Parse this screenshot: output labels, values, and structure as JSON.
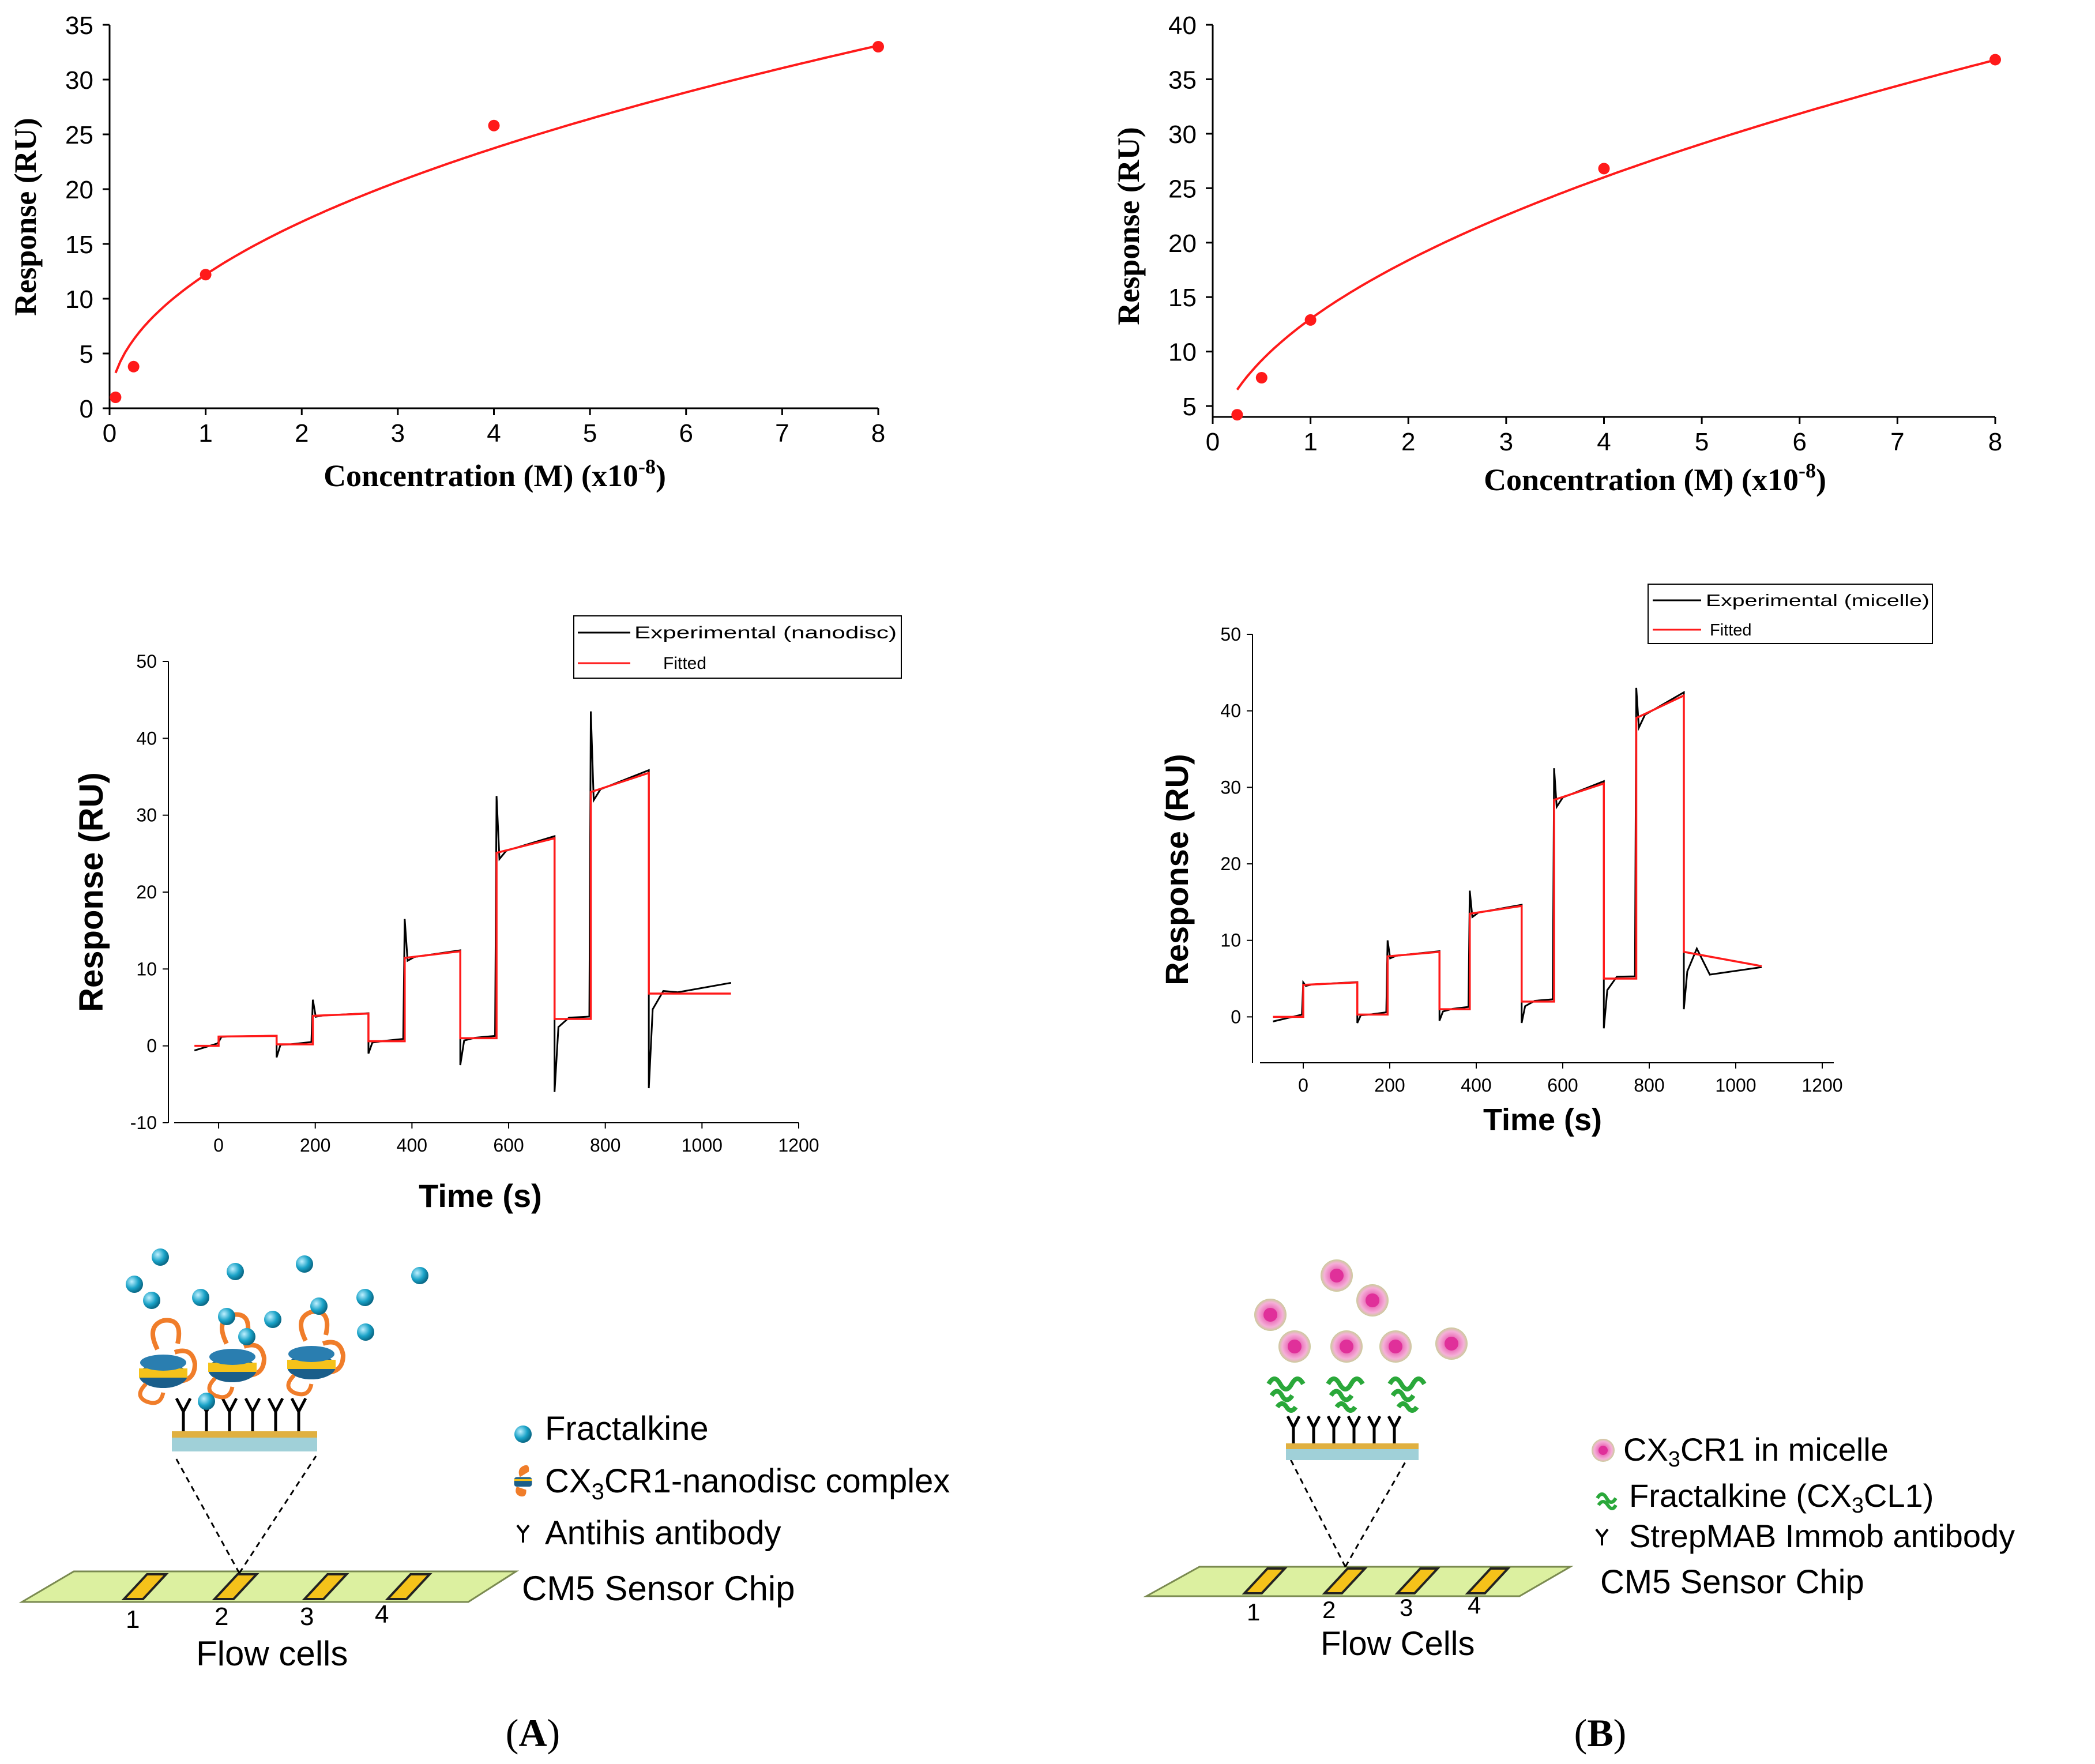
{
  "colors": {
    "fit": "#ff1a1a",
    "experimental": "#000000",
    "chip": "#dcf0a0",
    "cell": "#f5c21a",
    "bead": "#1aa3c8",
    "nanodisc": "#f07d2a",
    "micelle": "#e0309a",
    "ligand": "#2aa83a"
  },
  "chart_data": [
    {
      "id": "A-top",
      "type": "scatter",
      "title": "",
      "xlabel": "Concentration (M) (x10",
      "xlabel_exp": "-8",
      "xlabel_close": ")",
      "ylabel": "Response (RU)",
      "xlim": [
        0,
        8
      ],
      "ylim": [
        0,
        35
      ],
      "xticks": [
        0,
        1,
        2,
        3,
        4,
        5,
        6,
        7,
        8
      ],
      "yticks": [
        0,
        5,
        10,
        15,
        20,
        25,
        30,
        35
      ],
      "points": {
        "x": [
          0.0625,
          0.25,
          1,
          4,
          8
        ],
        "y": [
          1.0,
          3.8,
          12.2,
          25.8,
          33.0
        ]
      },
      "fit": {
        "model": "power",
        "a": 12.2,
        "b": 0.48
      }
    },
    {
      "id": "B-top",
      "type": "scatter",
      "title": "",
      "xlabel": "Concentration (M) (x10",
      "xlabel_exp": "-8",
      "xlabel_close": ")",
      "ylabel": "Response (RU)",
      "xlim": [
        0,
        8
      ],
      "ylim": [
        4,
        40
      ],
      "xticks": [
        0,
        1,
        2,
        3,
        4,
        5,
        6,
        7,
        8
      ],
      "yticks": [
        5,
        10,
        15,
        20,
        25,
        30,
        35,
        40
      ],
      "points": {
        "x": [
          0.25,
          0.5,
          1,
          4,
          8
        ],
        "y": [
          4.2,
          7.6,
          12.9,
          26.8,
          36.8
        ]
      },
      "fit": {
        "model": "power",
        "a": 13.0,
        "b": 0.5
      }
    },
    {
      "id": "A-sensorgram",
      "type": "line",
      "xlabel": "Time (s)",
      "ylabel": "Response (RU)",
      "xlim": [
        -80,
        1200
      ],
      "ylim": [
        -10,
        50
      ],
      "xticks": [
        0,
        200,
        400,
        600,
        800,
        1000,
        1200
      ],
      "yticks": [
        -10,
        0,
        10,
        20,
        30,
        40,
        50
      ],
      "legend": [
        "Experimental (nanodisc)",
        "Fitted"
      ],
      "legend_position": "top-right",
      "baseline": 0,
      "cycles": [
        {
          "start": 0,
          "end": 120,
          "plateau": 1.3,
          "after": 0.2,
          "spike": 0.5,
          "dip": -1.5
        },
        {
          "start": 195,
          "end": 310,
          "plateau": 4.2,
          "after": 0.6,
          "spike": 6.0,
          "dip": -1.0
        },
        {
          "start": 385,
          "end": 500,
          "plateau": 12.3,
          "after": 1.0,
          "spike": 16.5,
          "dip": -2.5
        },
        {
          "start": 575,
          "end": 695,
          "plateau": 27.0,
          "after": 3.5,
          "spike": 32.5,
          "dip": -6.0
        },
        {
          "start": 770,
          "end": 890,
          "plateau": 35.5,
          "after": 6.8,
          "spike": 43.5,
          "dip": -5.5
        }
      ],
      "end_time": 1060,
      "end_exp": 8.2
    },
    {
      "id": "B-sensorgram",
      "type": "line",
      "xlabel": "Time (s)",
      "ylabel": "Response (RU)",
      "xlim": [
        -100,
        1200
      ],
      "ylim": [
        -6,
        50
      ],
      "xticks": [
        0,
        200,
        400,
        600,
        800,
        1000,
        1200
      ],
      "yticks": [
        0,
        10,
        20,
        30,
        40,
        50
      ],
      "legend": [
        "Experimental (micelle)",
        "Fitted"
      ],
      "legend_position": "top-right",
      "baseline": 0,
      "cycles": [
        {
          "start": 0,
          "end": 125,
          "plateau": 4.5,
          "after": 0.3,
          "spike": 4.5,
          "dip": -0.8
        },
        {
          "start": 195,
          "end": 315,
          "plateau": 8.5,
          "after": 1.0,
          "spike": 10.0,
          "dip": -0.5
        },
        {
          "start": 385,
          "end": 505,
          "plateau": 14.5,
          "after": 2.0,
          "spike": 16.5,
          "dip": -0.8
        },
        {
          "start": 580,
          "end": 695,
          "plateau": 30.5,
          "after": 5.0,
          "spike": 32.5,
          "dip": -1.5
        },
        {
          "start": 770,
          "end": 880,
          "plateau": 42.0,
          "after": 8.5,
          "spike": 43.0,
          "dip": 1.0
        }
      ],
      "end_time": 1060,
      "end_exp": 6.5
    }
  ],
  "diagram_a": {
    "legend": [
      {
        "icon": "bead",
        "label": "Fractalkine"
      },
      {
        "icon": "nanodisc",
        "label_pre": "CX",
        "label_sub": "3",
        "label_post": "CR1-nanodisc complex"
      },
      {
        "icon": "antibody",
        "label": "Antihis antibody"
      }
    ],
    "chip_label": "CM5 Sensor Chip",
    "cells": [
      "1",
      "2",
      "3",
      "4"
    ],
    "cells_label": "Flow cells",
    "panel_label_open": "(",
    "panel_label": "A",
    "panel_label_close": ")"
  },
  "diagram_b": {
    "legend": [
      {
        "icon": "micelle",
        "label_pre": "CX",
        "label_sub": "3",
        "label_post": "CR1 in micelle"
      },
      {
        "icon": "ligand",
        "label_pre": "Fractalkine (CX",
        "label_sub": "3",
        "label_post": "CL1)"
      },
      {
        "icon": "antibody",
        "label": "StrepMAB Immob antibody"
      }
    ],
    "chip_label": "CM5 Sensor Chip",
    "cells": [
      "1",
      "2",
      "3",
      "4"
    ],
    "cells_label": "Flow Cells",
    "panel_label_open": "(",
    "panel_label": "B",
    "panel_label_close": ")"
  }
}
